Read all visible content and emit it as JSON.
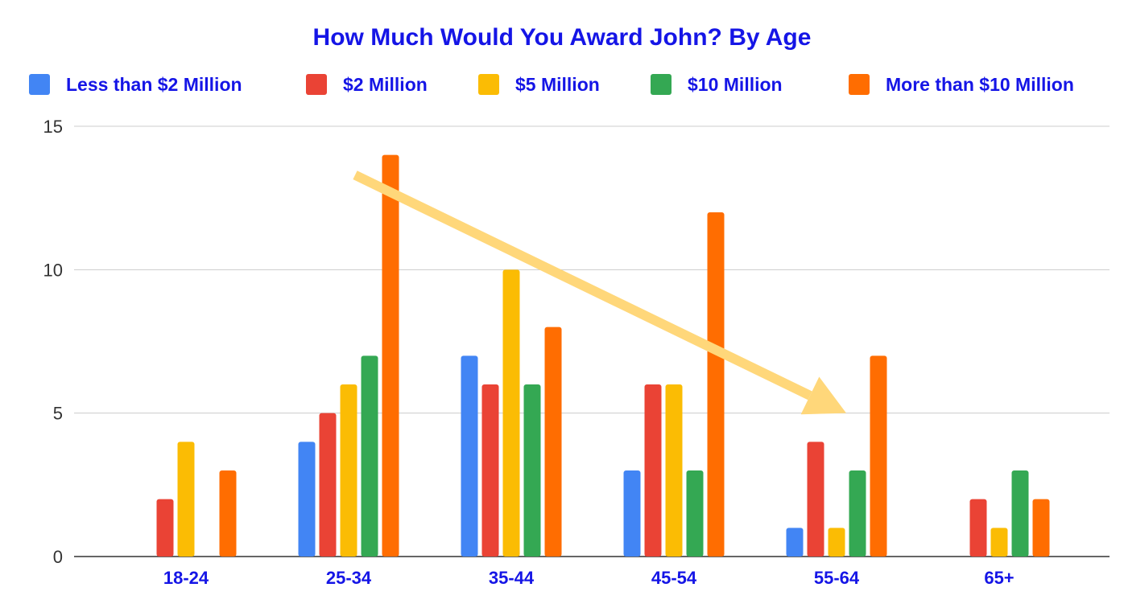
{
  "chart_data": {
    "type": "bar",
    "title": "How Much Would You Award John? By Age",
    "xlabel": "",
    "ylabel": "",
    "categories": [
      "18-24",
      "25-34",
      "35-44",
      "45-54",
      "55-64",
      "65+"
    ],
    "series": [
      {
        "name": "Less than $2 Million",
        "color": "#4285f4",
        "values": [
          0,
          4,
          7,
          3,
          1,
          0
        ]
      },
      {
        "name": "$2 Million",
        "color": "#ea4335",
        "values": [
          2,
          5,
          6,
          6,
          4,
          2
        ]
      },
      {
        "name": "$5 Million",
        "color": "#fbbc04",
        "values": [
          4,
          6,
          10,
          6,
          1,
          1
        ]
      },
      {
        "name": "$10 Million",
        "color": "#34a853",
        "values": [
          0,
          7,
          6,
          3,
          3,
          3
        ]
      },
      {
        "name": "More than $10 Million",
        "color": "#ff6d01",
        "values": [
          3,
          14,
          8,
          12,
          7,
          2
        ]
      }
    ],
    "ylim": [
      0,
      15
    ],
    "yticks": [
      0,
      5,
      10,
      15
    ],
    "grid": true,
    "legend_position": "top",
    "annotation": {
      "type": "arrow",
      "color": "#ffd77a",
      "from": {
        "category": "25-34",
        "y": 13.3
      },
      "to": {
        "category": "55-64",
        "y": 5.0
      }
    }
  }
}
